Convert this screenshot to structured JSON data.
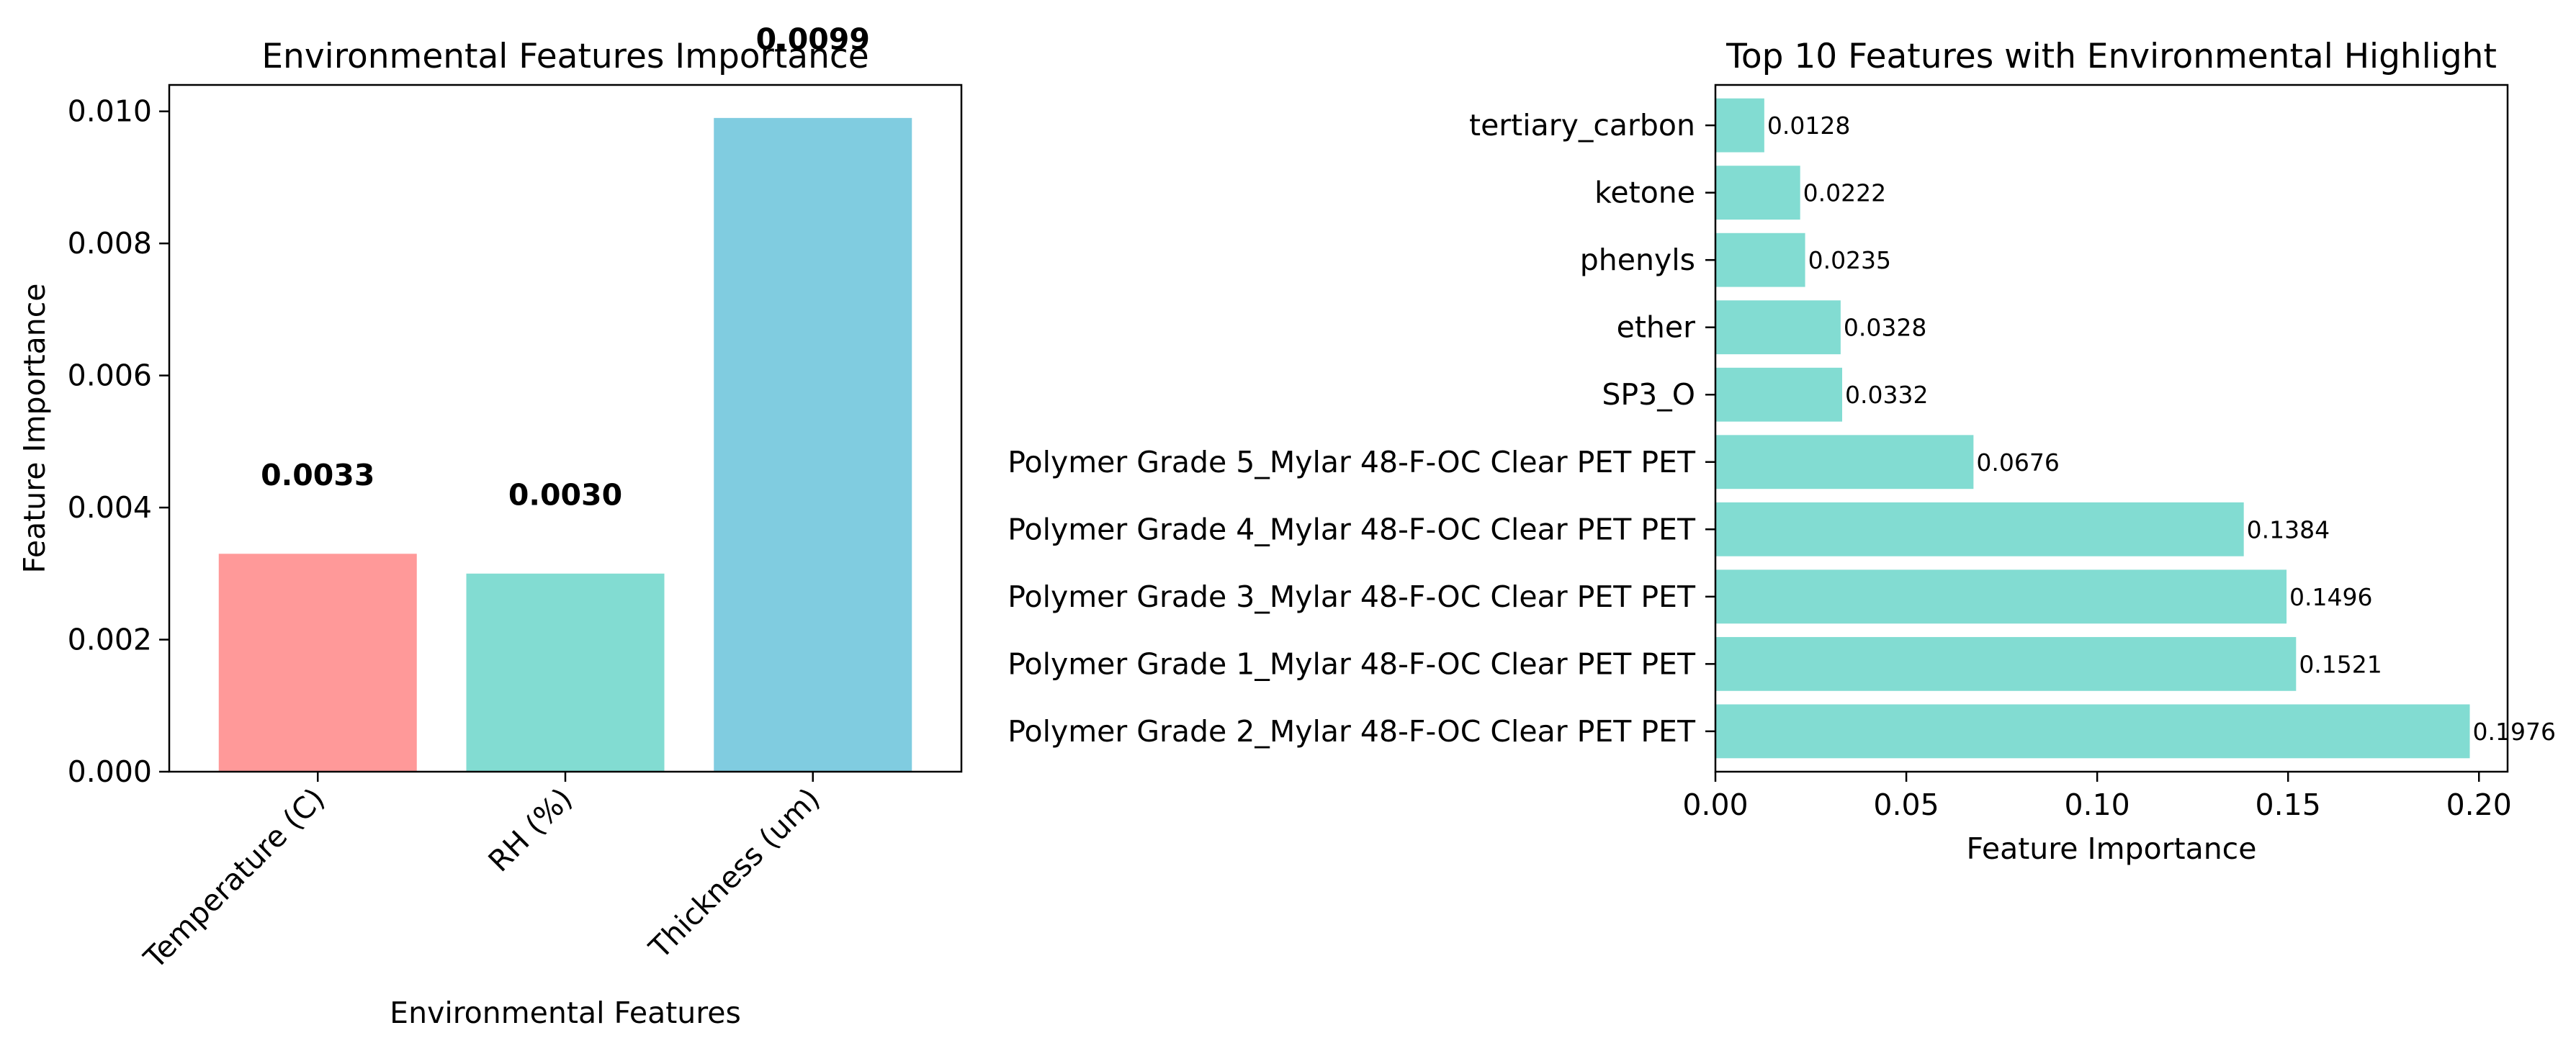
{
  "chart_data": [
    {
      "type": "bar",
      "title": "Environmental Features Importance",
      "xlabel": "Environmental Features",
      "ylabel": "Feature Importance",
      "categories": [
        "Temperature (C)",
        "RH (%)",
        "Thickness (um)"
      ],
      "values": [
        0.0033,
        0.003,
        0.0099
      ],
      "value_labels": [
        "0.0033",
        "0.0030",
        "0.0099"
      ],
      "colors": [
        "#ff9999",
        "#82dcd2",
        "#80cce0"
      ],
      "ylim": [
        0,
        0.0104
      ],
      "yticks": [
        0,
        0.002,
        0.004,
        0.006,
        0.008,
        0.01
      ],
      "ytick_labels": [
        "0.000",
        "0.002",
        "0.004",
        "0.006",
        "0.008",
        "0.010"
      ],
      "grid": false
    },
    {
      "type": "bar",
      "orientation": "horizontal",
      "title": "Top 10 Features with Environmental Highlight",
      "xlabel": "Feature Importance",
      "ylabel": "",
      "categories": [
        "Polymer Grade 2_Mylar 48-F-OC Clear PET PET",
        "Polymer Grade 1_Mylar 48-F-OC Clear PET PET",
        "Polymer Grade 3_Mylar 48-F-OC Clear PET PET",
        "Polymer Grade 4_Mylar 48-F-OC Clear PET PET",
        "Polymer Grade 5_Mylar 48-F-OC Clear PET PET",
        "SP3_O",
        "ether",
        "phenyls",
        "ketone",
        "tertiary_carbon"
      ],
      "values": [
        0.1976,
        0.1521,
        0.1496,
        0.1384,
        0.0676,
        0.0332,
        0.0328,
        0.0235,
        0.0222,
        0.0128
      ],
      "value_labels": [
        "0.1976",
        "0.1521",
        "0.1496",
        "0.1384",
        "0.0676",
        "0.0332",
        "0.0328",
        "0.0235",
        "0.0222",
        "0.0128"
      ],
      "color": "#82dcd2",
      "xlim": [
        0,
        0.2075
      ],
      "xticks": [
        0,
        0.05,
        0.1,
        0.15,
        0.2
      ],
      "xtick_labels": [
        "0.00",
        "0.05",
        "0.10",
        "0.15",
        "0.20"
      ],
      "grid": false
    }
  ]
}
